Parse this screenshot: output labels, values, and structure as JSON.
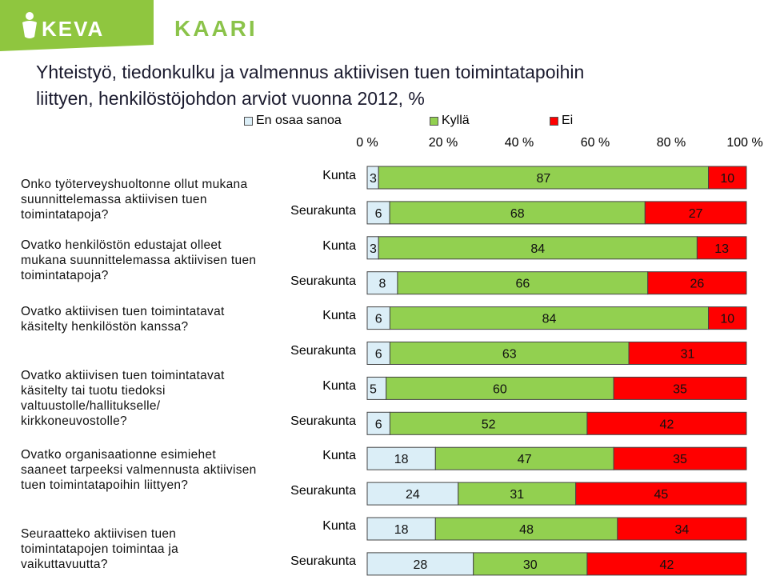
{
  "brand": {
    "keva": "KEVA",
    "kaari": "KAARI",
    "colors": {
      "green_panel": "#8fc63f",
      "kaari": "#8bc34a"
    }
  },
  "title_line1": "Yhteistyö, tiedonkulku ja valmennus aktiivisen tuen toimintatapoihin",
  "title_line2": "liittyen, henkilöstöjohdon arviot vuonna 2012, %",
  "chart_data": {
    "type": "bar",
    "stacked": true,
    "orientation": "horizontal",
    "title": "Yhteistyö, tiedonkulku ja valmennus aktiivisen tuen toimintatapoihin liittyen, henkilöstöjohdon arviot vuonna 2012, %",
    "x_ticks": [
      "0 %",
      "20 %",
      "40 %",
      "60 %",
      "80 %",
      "100 %"
    ],
    "xlim": [
      0,
      100
    ],
    "legend_position": "top",
    "legend": [
      {
        "name": "En osaa sanoa",
        "color": "#dbeef7"
      },
      {
        "name": "Kyllä",
        "color": "#92d050"
      },
      {
        "name": "Ei",
        "color": "#ff0000"
      }
    ],
    "groups": [
      {
        "question": "Onko työterveyshuoltonne ollut mukana suunnittelemassa aktiivisen tuen toimintatapoja?",
        "rows": [
          {
            "label": "Kunta",
            "values": [
              3,
              87,
              10
            ]
          },
          {
            "label": "Seurakunta",
            "values": [
              6,
              68,
              27
            ]
          }
        ]
      },
      {
        "question": "Ovatko henkilöstön edustajat olleet mukana suunnittelemassa aktiivisen tuen toimintatapoja?",
        "rows": [
          {
            "label": "Kunta",
            "values": [
              3,
              84,
              13
            ]
          },
          {
            "label": "Seurakunta",
            "values": [
              8,
              66,
              26
            ]
          }
        ]
      },
      {
        "question": "Ovatko aktiivisen tuen toimintatavat käsitelty henkilöstön kanssa?",
        "rows": [
          {
            "label": "Kunta",
            "values": [
              6,
              84,
              10
            ]
          },
          {
            "label": "Seurakunta",
            "values": [
              6,
              63,
              31
            ]
          }
        ]
      },
      {
        "question": "Ovatko aktiivisen tuen toimintatavat käsitelty tai tuotu tiedoksi valtuustolle/hallitukselle/ kirkkoneuvostolle?",
        "rows": [
          {
            "label": "Kunta",
            "values": [
              5,
              60,
              35
            ]
          },
          {
            "label": "Seurakunta",
            "values": [
              6,
              52,
              42
            ]
          }
        ]
      },
      {
        "question": "Ovatko organisaationne esimiehet saaneet tarpeeksi valmennusta aktiivisen tuen toimintatapoihin liittyen?",
        "rows": [
          {
            "label": "Kunta",
            "values": [
              18,
              47,
              35
            ]
          },
          {
            "label": "Seurakunta",
            "values": [
              24,
              31,
              45
            ]
          }
        ]
      },
      {
        "question": "Seuraatteko aktiivisen tuen toimintatapojen toimintaa ja vaikuttavuutta?",
        "rows": [
          {
            "label": "Kunta",
            "values": [
              18,
              48,
              34
            ]
          },
          {
            "label": "Seurakunta",
            "values": [
              28,
              30,
              42
            ]
          }
        ]
      }
    ]
  }
}
